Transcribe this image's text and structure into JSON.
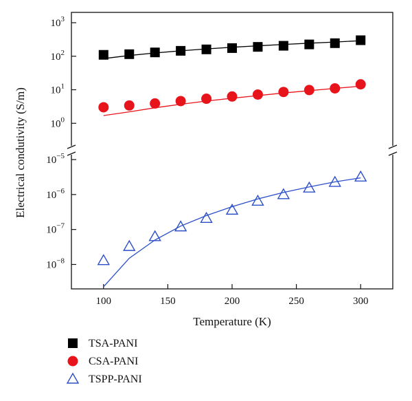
{
  "chart_data": {
    "type": "scatter",
    "title": "",
    "xlabel": "Temperature (K)",
    "ylabel": "Electrical condutivity (S/m)",
    "xlim": [
      75,
      325
    ],
    "xticks": [
      100,
      150,
      200,
      250,
      300
    ],
    "y_scale": "log",
    "y_axis_broken": true,
    "upper_panel": {
      "ylim": [
        0.1,
        1000
      ],
      "ticks": [
        0,
        1,
        2,
        3
      ]
    },
    "lower_panel": {
      "ylim": [
        2e-09,
        1e-05
      ],
      "ticks": [
        -8,
        -7,
        -6,
        -5
      ]
    },
    "x": [
      100,
      120,
      140,
      160,
      180,
      200,
      220,
      240,
      260,
      280,
      300
    ],
    "series": [
      {
        "name": "TSA-PANI",
        "marker": "square",
        "color": "#000000",
        "values": [
          110,
          115,
          130,
          145,
          160,
          175,
          190,
          205,
          225,
          245,
          300
        ],
        "fit_values": [
          85,
          105,
          125,
          145,
          165,
          185,
          205,
          225,
          245,
          265,
          290
        ]
      },
      {
        "name": "CSA-PANI",
        "marker": "circle",
        "color": "#e8141b",
        "values": [
          3.0,
          3.4,
          3.9,
          4.6,
          5.4,
          6.3,
          7.2,
          8.6,
          9.8,
          11.0,
          14.5
        ],
        "fit_values": [
          1.7,
          2.2,
          2.9,
          3.7,
          4.6,
          5.6,
          6.7,
          8.0,
          9.4,
          11.0,
          12.8
        ]
      },
      {
        "name": "TSPP-PANI",
        "marker": "open-triangle",
        "color": "#2b4fc7",
        "values": [
          1.3e-08,
          3.3e-08,
          6.3e-08,
          1.2e-07,
          2.1e-07,
          3.6e-07,
          6.5e-07,
          1e-06,
          1.55e-06,
          2.25e-06,
          3.2e-06
        ],
        "fit_values": [
          2.3e-09,
          1.5e-08,
          5e-08,
          1.25e-07,
          2.5e-07,
          4.5e-07,
          7.5e-07,
          1.15e-06,
          1.65e-06,
          2.3e-06,
          3e-06
        ]
      }
    ],
    "legend": {
      "position": "bottom-left"
    }
  }
}
